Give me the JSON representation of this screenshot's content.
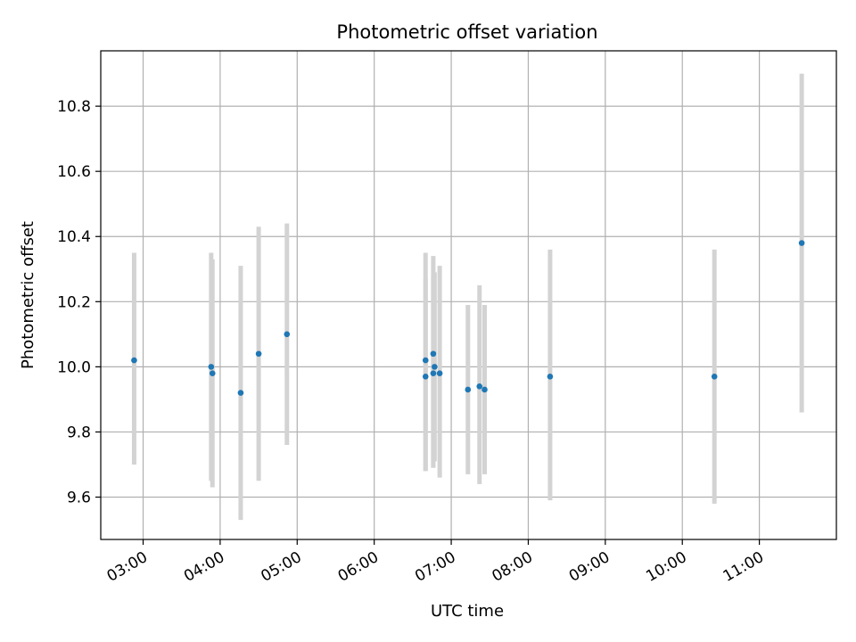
{
  "chart_data": {
    "type": "scatter",
    "title": "Photometric offset variation",
    "xlabel": "UTC time",
    "ylabel": "Photometric offset",
    "x_axis_kind": "time",
    "xlim": [
      "02:27",
      "12:00"
    ],
    "ylim": [
      9.47,
      10.97
    ],
    "x_ticks": [
      "03:00",
      "04:00",
      "05:00",
      "06:00",
      "07:00",
      "08:00",
      "09:00",
      "10:00",
      "11:00"
    ],
    "y_ticks": [
      "9.6",
      "9.8",
      "10.0",
      "10.2",
      "10.4",
      "10.6",
      "10.8"
    ],
    "grid": true,
    "colors": {
      "point": "#1f77b4",
      "error_bar": "#d3d3d3",
      "grid": "#b0b0b0"
    },
    "points": [
      {
        "t": "02:53",
        "y": 10.02,
        "ylow": 9.7,
        "yhigh": 10.35
      },
      {
        "t": "03:53",
        "y": 10.0,
        "ylow": 9.65,
        "yhigh": 10.35
      },
      {
        "t": "03:54",
        "y": 9.98,
        "ylow": 9.63,
        "yhigh": 10.33
      },
      {
        "t": "04:16",
        "y": 9.92,
        "ylow": 9.53,
        "yhigh": 10.31
      },
      {
        "t": "04:30",
        "y": 10.04,
        "ylow": 9.65,
        "yhigh": 10.43
      },
      {
        "t": "04:52",
        "y": 10.1,
        "ylow": 9.76,
        "yhigh": 10.44
      },
      {
        "t": "06:40",
        "y": 10.02,
        "ylow": 9.68,
        "yhigh": 10.35
      },
      {
        "t": "06:40",
        "y": 9.97,
        "ylow": 9.68,
        "yhigh": 10.27
      },
      {
        "t": "06:46",
        "y": 10.04,
        "ylow": 9.69,
        "yhigh": 10.34
      },
      {
        "t": "06:46",
        "y": 9.98,
        "ylow": 9.69,
        "yhigh": 10.28
      },
      {
        "t": "06:47",
        "y": 10.0,
        "ylow": 9.71,
        "yhigh": 10.29
      },
      {
        "t": "06:51",
        "y": 9.98,
        "ylow": 9.66,
        "yhigh": 10.31
      },
      {
        "t": "07:13",
        "y": 9.93,
        "ylow": 9.67,
        "yhigh": 10.19
      },
      {
        "t": "07:22",
        "y": 9.94,
        "ylow": 9.64,
        "yhigh": 10.25
      },
      {
        "t": "07:26",
        "y": 9.93,
        "ylow": 9.67,
        "yhigh": 10.19
      },
      {
        "t": "08:17",
        "y": 9.97,
        "ylow": 9.59,
        "yhigh": 10.36
      },
      {
        "t": "10:25",
        "y": 9.97,
        "ylow": 9.58,
        "yhigh": 10.36
      },
      {
        "t": "11:33",
        "y": 10.38,
        "ylow": 9.86,
        "yhigh": 10.9
      }
    ]
  }
}
